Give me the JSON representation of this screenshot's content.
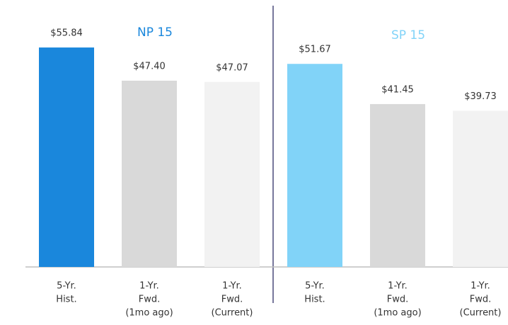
{
  "chart_data": [
    {
      "type": "bar",
      "title": "NP 15",
      "title_color": "#1a87dc",
      "categories": [
        [
          "5-Yr.",
          "Hist."
        ],
        [
          "1-Yr.",
          "Fwd.",
          "(1mo ago)"
        ],
        [
          "1-Yr.",
          "Fwd.",
          "(Current)"
        ]
      ],
      "values": [
        55.84,
        47.4,
        47.07
      ],
      "value_labels": [
        "$55.84",
        "$47.40",
        "$47.07"
      ],
      "colors": [
        "#1a87dc",
        "#d9d9d9",
        "#f2f2f2"
      ]
    },
    {
      "type": "bar",
      "title": "SP 15",
      "title_color": "#81d3f8",
      "categories": [
        [
          "5-Yr.",
          "Hist."
        ],
        [
          "1-Yr.",
          "Fwd.",
          "(1mo ago)"
        ],
        [
          "1-Yr.",
          "Fwd.",
          "(Current)"
        ]
      ],
      "values": [
        51.67,
        41.45,
        39.73
      ],
      "value_labels": [
        "$51.67",
        "$41.45",
        "$39.73"
      ],
      "colors": [
        "#81d3f8",
        "#d9d9d9",
        "#f2f2f2"
      ]
    }
  ]
}
